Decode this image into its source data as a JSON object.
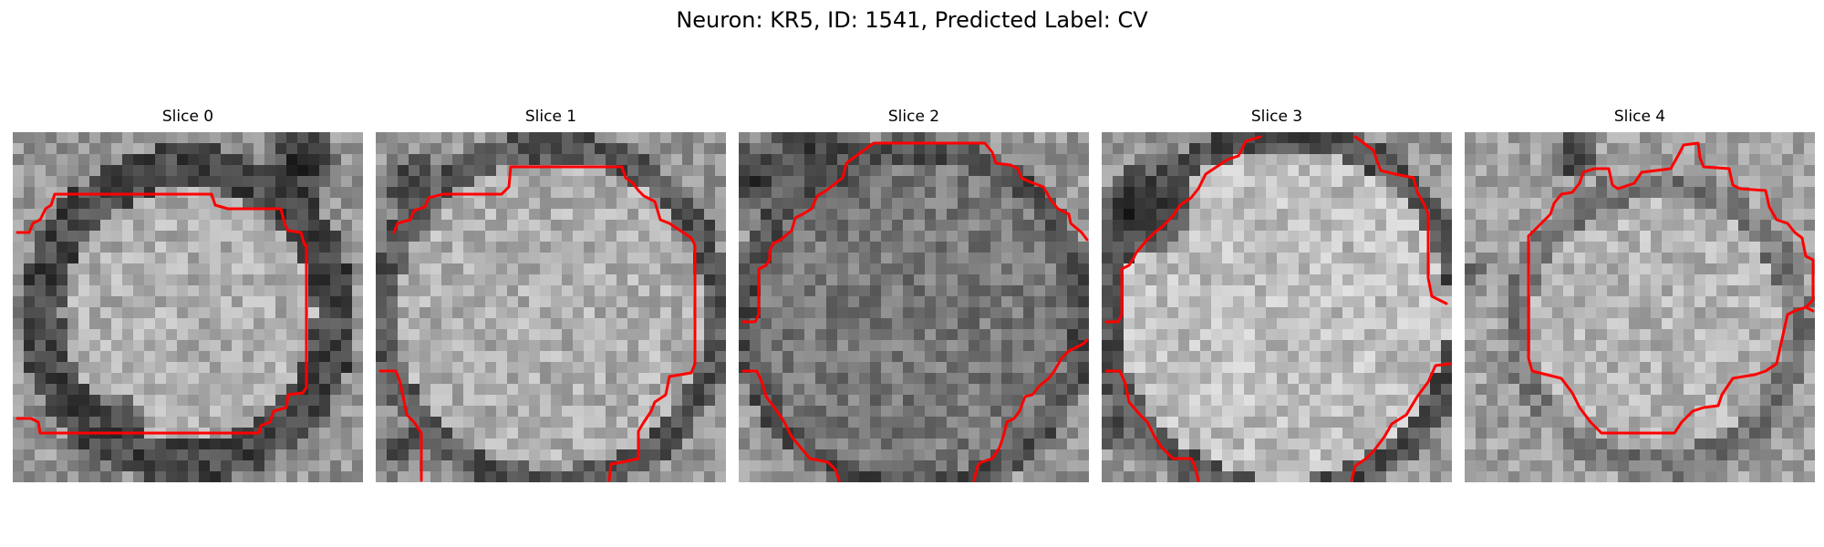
{
  "figure": {
    "title": "Neuron: KR5, ID: 1541, Predicted Label: CV"
  },
  "panels": [
    {
      "label": "Slice 0"
    },
    {
      "label": "Slice 1"
    },
    {
      "label": "Slice 2"
    },
    {
      "label": "Slice 3"
    },
    {
      "label": "Slice 4"
    }
  ],
  "style": {
    "contour_color": "#ff0000",
    "colormap": "grayscale"
  }
}
